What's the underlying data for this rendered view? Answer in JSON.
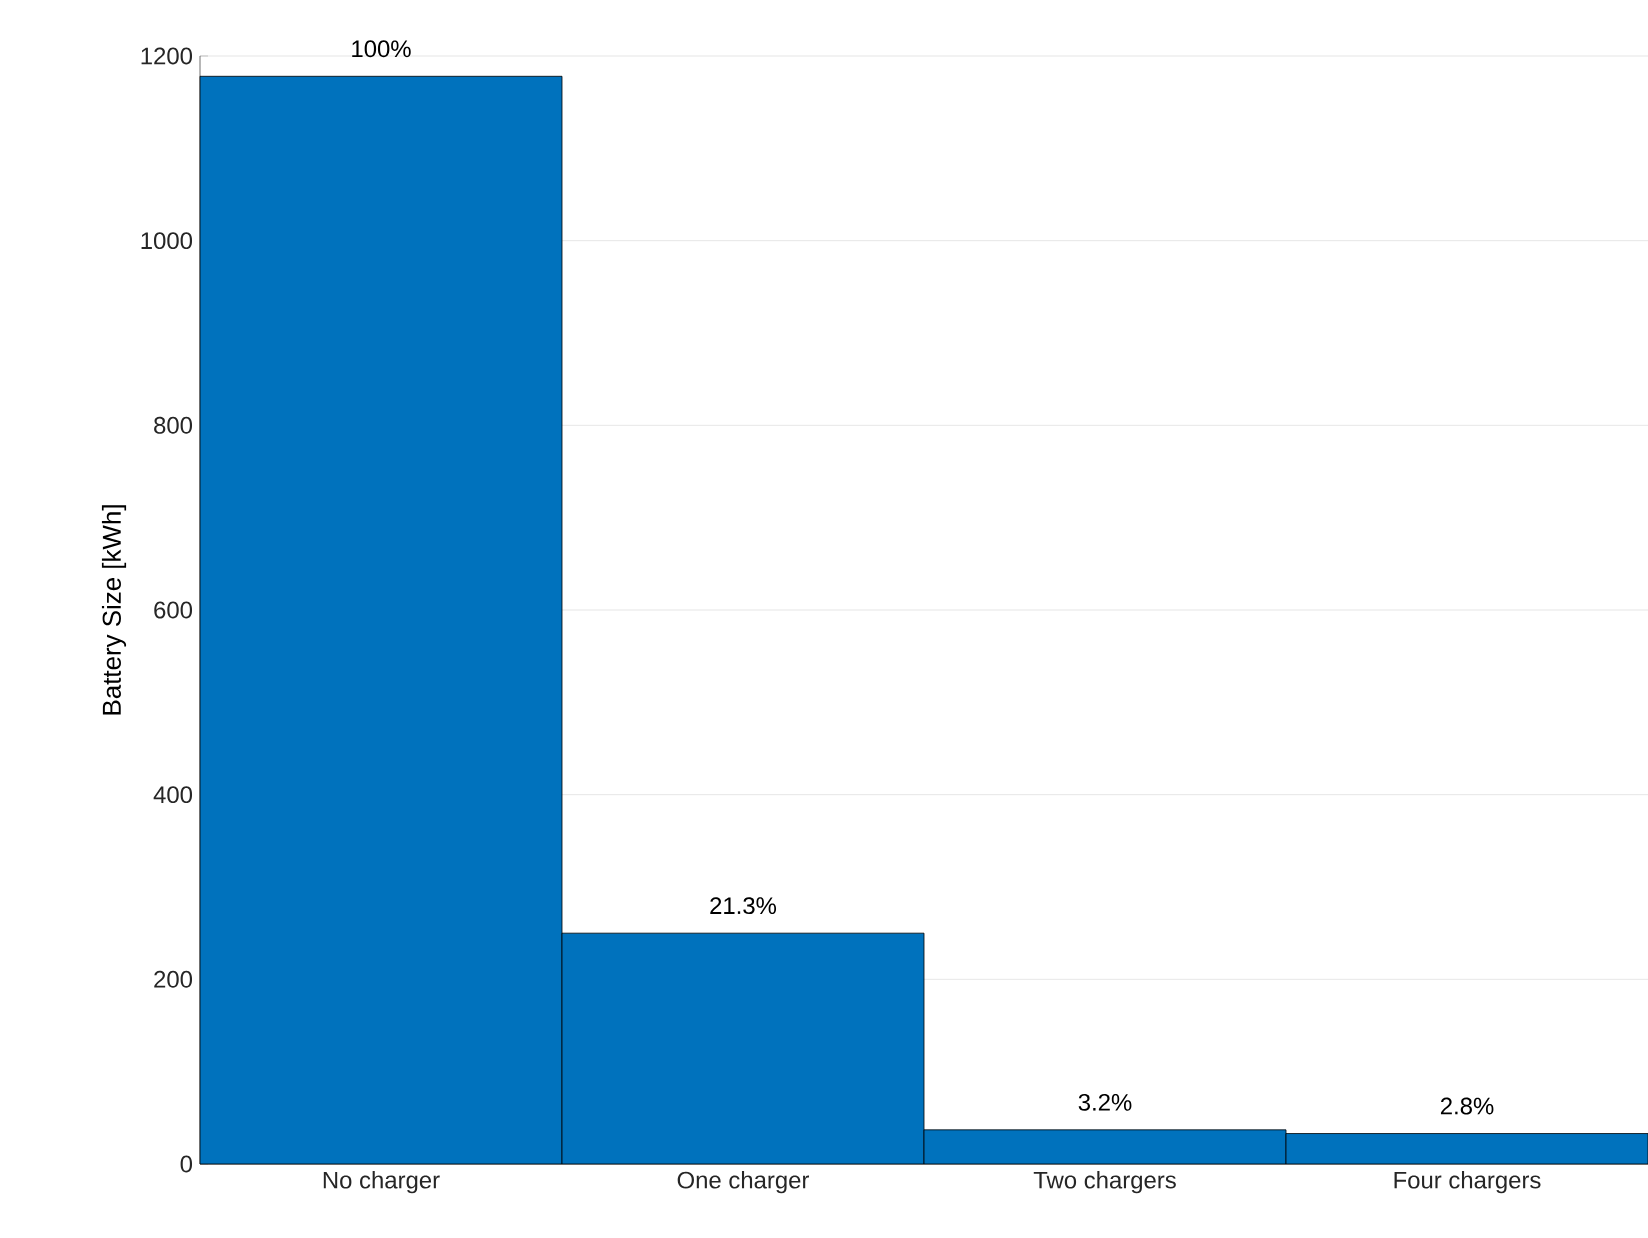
{
  "chart_data": {
    "type": "bar",
    "ylabel": "Battery Size [kWh]",
    "categories": [
      "No charger",
      "One charger",
      "Two chargers",
      "Four chargers"
    ],
    "values": [
      1178,
      250,
      37,
      33
    ],
    "annotations": [
      {
        "text": "100%",
        "x": "No charger",
        "y": 1178
      },
      {
        "text": "21.3%",
        "x": "One charger",
        "y": 250
      },
      {
        "text": "3.2%",
        "x": "Two chargers",
        "y": 37
      },
      {
        "text": "2.8%",
        "x": "Four chargers",
        "y": 33
      }
    ],
    "color": "#0072bd",
    "ylim": [
      0,
      1200
    ],
    "yticks": [
      0,
      200,
      400,
      600,
      800,
      1000,
      1200
    ],
    "grid": "y"
  }
}
